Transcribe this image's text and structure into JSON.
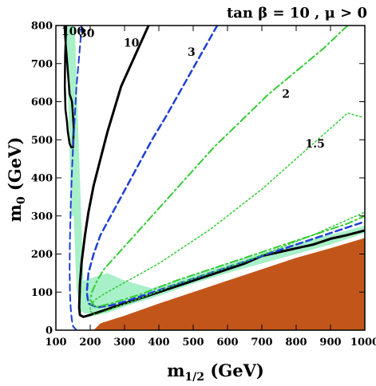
{
  "chart_data": {
    "type": "line",
    "title": "tan β = 10 ,  μ > 0",
    "xlabel": "m",
    "xlabel_sub": "1/2",
    "xlabel_unit": " (GeV)",
    "ylabel": "m",
    "ylabel_sub": "0",
    "ylabel_unit": " (GeV)",
    "xlim": [
      100,
      1000
    ],
    "ylim": [
      0,
      800
    ],
    "xticks": [
      100,
      200,
      300,
      400,
      500,
      600,
      700,
      800,
      900,
      1000
    ],
    "yticks": [
      0,
      100,
      200,
      300,
      400,
      500,
      600,
      700,
      800
    ],
    "grid": false,
    "legend": "none",
    "colors": {
      "forbidden": "#c2561a",
      "wmap": "#a8f0c8",
      "black": "#000000",
      "blue": "#1f3fd6",
      "green": "#33cc33"
    },
    "regions": [
      {
        "name": "charged LSP excluded",
        "kind": "filled",
        "color": "#c2561a",
        "x": [
          210,
          230,
          300,
          400,
          500,
          600,
          700,
          800,
          900,
          1000,
          1000,
          210
        ],
        "y": [
          0,
          18,
          38,
          70,
          100,
          130,
          160,
          190,
          215,
          242,
          0,
          0
        ]
      },
      {
        "name": "relic density band",
        "kind": "filled",
        "color": "#a8f0c8",
        "x": [
          155,
          180,
          250,
          300,
          380,
          450,
          550,
          650,
          750,
          850,
          950,
          1000,
          1000,
          900,
          800,
          700,
          600,
          500,
          400,
          300,
          250,
          200,
          170,
          160,
          150,
          140
        ],
        "y": [
          800,
          130,
          150,
          130,
          110,
          130,
          160,
          190,
          215,
          240,
          262,
          275,
          255,
          225,
          200,
          175,
          150,
          122,
          90,
          62,
          45,
          40,
          50,
          110,
          350,
          800
        ]
      },
      {
        "name": "relic density strip low m1/2",
        "kind": "filled",
        "color": "#a8f0c8",
        "x": [
          130,
          150,
          160,
          145
        ],
        "y": [
          800,
          800,
          300,
          300
        ]
      }
    ],
    "series": [
      {
        "name": "100",
        "style": "solid",
        "color": "#000000",
        "width": 2.5,
        "x": [
          130,
          127,
          126,
          128,
          132,
          135,
          140,
          145,
          150,
          152,
          150,
          147,
          140,
          135,
          128,
          125
        ],
        "y": [
          800,
          720,
          640,
          580,
          550,
          520,
          490,
          480,
          480,
          530,
          560,
          600,
          620,
          680,
          760,
          800
        ]
      },
      {
        "name": "30",
        "style": "dashed",
        "color": "#1f3fd6",
        "width": 2,
        "x": [
          175,
          168,
          160,
          155,
          150,
          146,
          143,
          141,
          140,
          141,
          143,
          146,
          150,
          155,
          160
        ],
        "y": [
          800,
          720,
          640,
          560,
          480,
          400,
          320,
          240,
          160,
          100,
          60,
          30,
          10,
          5,
          0
        ]
      },
      {
        "name": "10",
        "style": "solid",
        "color": "#000000",
        "width": 3,
        "x": [
          370,
          350,
          320,
          290,
          270,
          250,
          230,
          210,
          195,
          185,
          175,
          170,
          168,
          170,
          180,
          200,
          250,
          300,
          400,
          500,
          600,
          650,
          700,
          750,
          800,
          850,
          900,
          950,
          1000
        ],
        "y": [
          800,
          760,
          700,
          640,
          580,
          520,
          450,
          380,
          310,
          250,
          180,
          120,
          60,
          40,
          35,
          40,
          55,
          70,
          100,
          130,
          160,
          175,
          195,
          205,
          215,
          225,
          240,
          250,
          262
        ]
      },
      {
        "name": "3",
        "style": "dashed",
        "color": "#1f3fd6",
        "width": 2.5,
        "x": [
          570,
          520,
          470,
          420,
          380,
          350,
          320,
          290,
          260,
          230,
          210,
          195,
          190,
          195,
          220,
          260,
          300,
          400,
          500,
          600,
          700,
          800,
          900,
          1000
        ],
        "y": [
          800,
          720,
          640,
          560,
          500,
          450,
          400,
          350,
          300,
          250,
          200,
          150,
          100,
          70,
          60,
          65,
          75,
          105,
          135,
          165,
          195,
          225,
          255,
          285
        ]
      },
      {
        "name": "2",
        "style": "dashdot",
        "color": "#33cc33",
        "width": 2,
        "x": [
          950,
          880,
          800,
          720,
          640,
          560,
          480,
          420,
          360,
          310,
          270,
          240,
          220,
          205,
          200,
          215,
          260,
          350,
          450,
          550,
          650,
          750,
          850,
          950,
          1000
        ],
        "y": [
          800,
          740,
          680,
          620,
          550,
          480,
          400,
          340,
          280,
          230,
          190,
          160,
          130,
          100,
          80,
          60,
          70,
          95,
          130,
          160,
          190,
          220,
          250,
          280,
          300
        ]
      },
      {
        "name": "1.5",
        "style": "dotted",
        "color": "#33cc33",
        "width": 1.5,
        "x": [
          990,
          950,
          900,
          850,
          800,
          750,
          700,
          650,
          600,
          550,
          500,
          450,
          400,
          350,
          300,
          270,
          240,
          215,
          200,
          200,
          215,
          260,
          350,
          450,
          550,
          650,
          750,
          850,
          950,
          1000
        ],
        "y": [
          560,
          570,
          530,
          490,
          450,
          410,
          370,
          335,
          300,
          265,
          235,
          205,
          175,
          150,
          125,
          110,
          95,
          80,
          65,
          50,
          40,
          55,
          85,
          120,
          150,
          180,
          215,
          250,
          290,
          310
        ]
      }
    ],
    "annotations": [
      {
        "text": "100",
        "x": 150,
        "y": 775
      },
      {
        "text": "30",
        "x": 190,
        "y": 770
      },
      {
        "text": "10",
        "x": 320,
        "y": 745
      },
      {
        "text": "3",
        "x": 495,
        "y": 720
      },
      {
        "text": "2",
        "x": 770,
        "y": 610
      },
      {
        "text": "1.5",
        "x": 855,
        "y": 480
      }
    ]
  }
}
